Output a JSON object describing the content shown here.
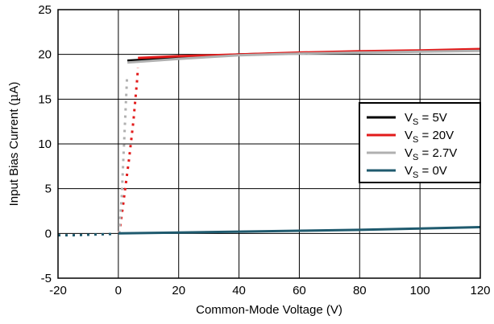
{
  "chart_data": {
    "type": "line",
    "title": "",
    "xlabel": "Common-Mode Voltage (V)",
    "ylabel_main": "Input Bias Current (",
    "ylabel_mu": "µ",
    "ylabel_tail": "A)",
    "xlim": [
      -20,
      120
    ],
    "ylim": [
      -5,
      25
    ],
    "x_ticks": [
      -20,
      0,
      20,
      40,
      60,
      80,
      100,
      120
    ],
    "y_ticks": [
      -5,
      0,
      5,
      10,
      15,
      20,
      25
    ],
    "grid": true,
    "legend_position": "right",
    "series": [
      {
        "name": "VS = 5V",
        "legend_prefix": "V",
        "legend_sub": "S",
        "legend_suffix": " = 5V",
        "color": "#000000",
        "solid_points": [
          [
            3,
            19.3
          ],
          [
            40,
            20.0
          ],
          [
            60,
            20.15
          ],
          [
            80,
            20.3
          ],
          [
            100,
            20.4
          ],
          [
            120,
            20.5
          ]
        ],
        "dotted_points": []
      },
      {
        "name": "VS = 20V",
        "legend_prefix": "V",
        "legend_sub": "S",
        "legend_suffix": " = 20V",
        "color": "#e21a1a",
        "solid_points": [
          [
            6.5,
            19.6
          ],
          [
            20,
            19.8
          ],
          [
            40,
            20.0
          ],
          [
            60,
            20.2
          ],
          [
            80,
            20.35
          ],
          [
            100,
            20.45
          ],
          [
            120,
            20.6
          ]
        ],
        "dotted_points": [
          [
            0.2,
            0
          ],
          [
            0.6,
            0.8
          ],
          [
            1.0,
            1.8
          ],
          [
            1.5,
            3.0
          ],
          [
            2.0,
            4.3
          ],
          [
            2.5,
            5.6
          ],
          [
            3.0,
            6.9
          ],
          [
            3.5,
            8.2
          ],
          [
            4.0,
            9.6
          ],
          [
            4.5,
            11.1
          ],
          [
            5.0,
            12.6
          ],
          [
            5.4,
            14.1
          ],
          [
            5.8,
            15.6
          ],
          [
            6.2,
            17.1
          ],
          [
            6.5,
            18.5
          ]
        ]
      },
      {
        "name": "VS = 2.7V",
        "legend_prefix": "V",
        "legend_sub": "S",
        "legend_suffix": " = 2.7V",
        "color": "#b0b0b0",
        "solid_points": [
          [
            3,
            19.1
          ],
          [
            20,
            19.5
          ],
          [
            40,
            19.9
          ],
          [
            60,
            20.1
          ],
          [
            80,
            20.2
          ],
          [
            100,
            20.3
          ],
          [
            120,
            20.4
          ]
        ],
        "dotted_points": [
          [
            0.3,
            0
          ],
          [
            0.5,
            1.2
          ],
          [
            0.8,
            2.6
          ],
          [
            1.1,
            4.1
          ],
          [
            1.3,
            5.6
          ],
          [
            1.5,
            7.1
          ],
          [
            1.7,
            8.6
          ],
          [
            1.9,
            10.1
          ],
          [
            2.1,
            11.6
          ],
          [
            2.3,
            13.1
          ],
          [
            2.5,
            14.6
          ],
          [
            2.7,
            16.1
          ],
          [
            2.9,
            17.6
          ]
        ]
      },
      {
        "name": "VS = 0V",
        "legend_prefix": "V",
        "legend_sub": "S",
        "legend_suffix": " = 0V",
        "color": "#1f5a6e",
        "solid_points": [
          [
            0,
            0
          ],
          [
            20,
            0.1
          ],
          [
            40,
            0.2
          ],
          [
            60,
            0.3
          ],
          [
            80,
            0.4
          ],
          [
            100,
            0.55
          ],
          [
            120,
            0.7
          ]
        ],
        "dotted_points": [
          [
            -20,
            -0.2
          ],
          [
            -15,
            -0.2
          ],
          [
            -10,
            -0.15
          ],
          [
            -5,
            -0.1
          ],
          [
            -1,
            -0.05
          ]
        ]
      }
    ]
  }
}
